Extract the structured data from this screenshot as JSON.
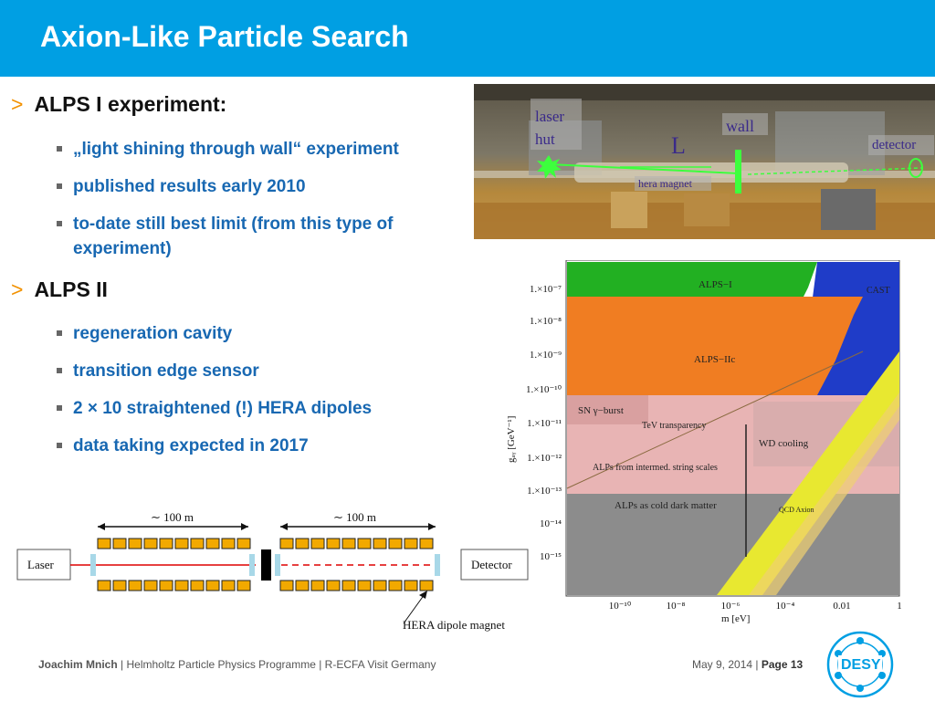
{
  "slide": {
    "title": "Axion-Like Particle Search"
  },
  "bullets": {
    "item1": "ALPS I experiment:",
    "item1_sub": [
      "„light shining through wall“ experiment",
      "published results early 2010",
      "to-date still best limit (from this type of",
      "experiment)"
    ],
    "item2": "ALPS II",
    "item2_sub": [
      "regeneration cavity",
      "transition edge sensor",
      "2 × 10 straightened (!) HERA dipoles",
      "data taking expected in 2017"
    ],
    "arrow": ">"
  },
  "photo": {
    "labels": {
      "laser": "laser",
      "hut": "hut",
      "wall": "wall",
      "L": "L",
      "detector": "detector",
      "magnet": "hera magnet"
    }
  },
  "exclusion_plot": {
    "ylabel": "gₐᵧ [GeV⁻¹]",
    "xlabel": "m [eV]",
    "y_ticks": [
      "1.×10⁻⁷",
      "1.×10⁻⁸",
      "1.×10⁻⁹",
      "1.×10⁻¹⁰",
      "1.×10⁻¹¹",
      "1.×10⁻¹²",
      "1.×10⁻¹³",
      "10⁻¹⁴",
      "10⁻¹⁵"
    ],
    "x_ticks": [
      "10⁻¹⁰",
      "10⁻⁸",
      "10⁻⁶",
      "10⁻⁴",
      "0.01",
      "1"
    ],
    "regions": {
      "alps1": "ALPS−I",
      "cast": "CAST",
      "alps2c": "ALPS−IIc",
      "sn": "SN γ−burst",
      "tev": "TeV transparency",
      "wd": "WD cooling",
      "string": "ALPs from intermed. string scales",
      "cdm": "ALPs as cold dark matter",
      "qcd": "QCD Axion"
    },
    "colors": {
      "alps1": "#22b022",
      "alps2": "#f07d22",
      "cast": "#1f3cc8",
      "qcd": "#e8e830",
      "pink": "#e8b4b4",
      "grey": "#8c8c8c"
    }
  },
  "setup": {
    "distance1": "∼ 100 m",
    "distance2": "∼ 100 m",
    "laser": "Laser",
    "detector": "Detector",
    "magnet_label": "HERA dipole magnet"
  },
  "footer": {
    "author": "Joachim Mnich",
    "text": " | Helmholtz Particle Physics Programme | R-ECFA Visit Germany",
    "date": "May 9, 2014",
    "sep": " | ",
    "page": "Page 13",
    "logo": "DESY"
  }
}
